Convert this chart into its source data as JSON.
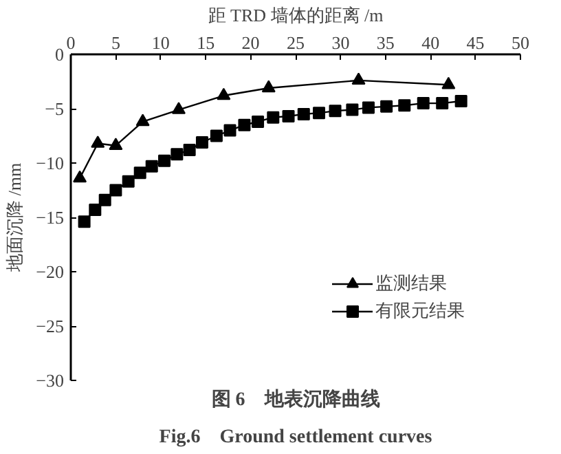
{
  "chart_data": {
    "type": "line",
    "title": "图 6　地表沉降曲线",
    "subtitle": "Fig.6　Ground settlement curves",
    "xlabel": "距 TRD 墙体的距离 /m",
    "ylabel": "地面沉降 /mm",
    "xlim": [
      0,
      50
    ],
    "xticks": [
      0,
      5,
      10,
      15,
      20,
      25,
      30,
      35,
      40,
      45,
      50
    ],
    "ylim": [
      -30,
      0
    ],
    "yticks": [
      0,
      {
        "value": -5,
        "label": "−5"
      },
      {
        "value": -10,
        "label": "−10"
      },
      {
        "value": -15,
        "label": "−15"
      },
      {
        "value": -20,
        "label": "−20"
      },
      {
        "value": -25,
        "label": "−25"
      },
      {
        "value": -30,
        "label": "−30"
      }
    ],
    "grid": false,
    "legend": "bottom right",
    "series": [
      {
        "name": "监测结果",
        "color": "#000000",
        "marker": "triangle",
        "x": [
          1,
          3,
          5,
          8,
          12,
          17,
          22,
          32,
          42
        ],
        "values": [
          -11.4,
          -8.2,
          -8.4,
          -6.2,
          -5.1,
          -3.8,
          -3.1,
          -2.4,
          -2.8
        ]
      },
      {
        "name": "有限元结果",
        "color": "#000000",
        "marker": "square",
        "x": [
          1.5,
          2.7,
          3.8,
          5.0,
          6.4,
          7.7,
          9.0,
          10.4,
          11.8,
          13.2,
          14.6,
          16.2,
          17.7,
          19.3,
          20.8,
          22.5,
          24.2,
          25.9,
          27.6,
          29.4,
          31.3,
          33.1,
          35.1,
          37.1,
          39.2,
          41.3,
          43.4
        ],
        "values": [
          -15.4,
          -14.3,
          -13.4,
          -12.5,
          -11.7,
          -10.9,
          -10.3,
          -9.8,
          -9.2,
          -8.8,
          -8.1,
          -7.5,
          -7.0,
          -6.5,
          -6.2,
          -5.8,
          -5.7,
          -5.5,
          -5.4,
          -5.2,
          -5.1,
          -4.9,
          -4.8,
          -4.7,
          -4.5,
          -4.5,
          -4.3
        ]
      }
    ]
  }
}
